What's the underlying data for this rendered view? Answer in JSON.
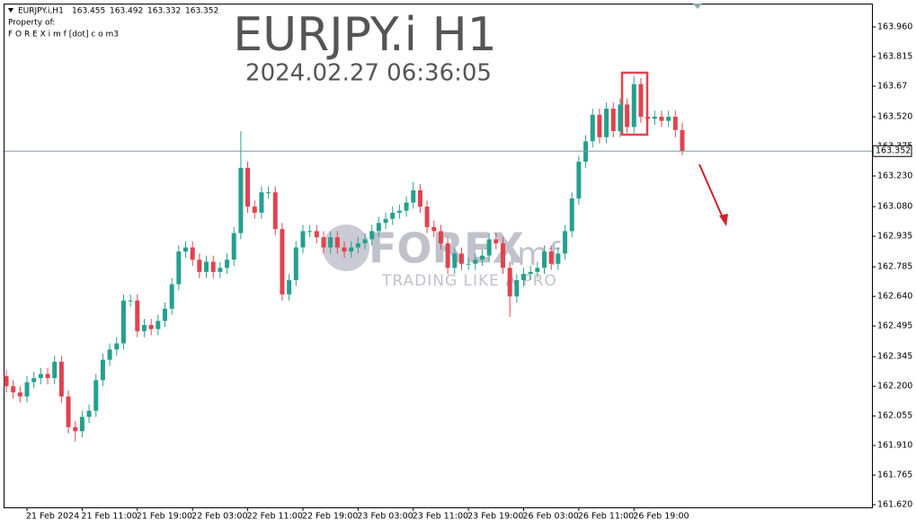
{
  "chart_data": {
    "type": "candlestick",
    "symbol": "EURJPY.i,H1",
    "header_values": [
      "163.455",
      "163.492",
      "163.332",
      "163.352"
    ],
    "property_line": "Property of:",
    "site_line": "F O R E X i m f [dot] c o m3",
    "watermark_title": "EURJPY.i H1",
    "watermark_time": "2024.02.27 06:36:05",
    "logo_text": "FOREX",
    "logo_suffix": "imf",
    "logo_tagline": "TRADING LIKE A PRO",
    "up_color": "#26a08e",
    "down_color": "#e0434f",
    "categories": [
      null,
      null,
      null,
      "21 Feb 2024",
      null,
      null,
      null,
      null,
      null,
      null,
      null,
      "21 Feb 11:00",
      null,
      null,
      null,
      null,
      null,
      null,
      null,
      "21 Feb 19:00",
      null,
      null,
      null,
      null,
      null,
      null,
      null,
      "22 Feb 03:00",
      null,
      null,
      null,
      null,
      null,
      null,
      null,
      "22 Feb 11:00",
      null,
      null,
      null,
      null,
      null,
      null,
      null,
      "22 Feb 19:00",
      null,
      null,
      null,
      null,
      null,
      null,
      null,
      "23 Feb 03:00",
      null,
      null,
      null,
      null,
      null,
      null,
      null,
      "23 Feb 11:00",
      null,
      null,
      null,
      null,
      null,
      null,
      null,
      "23 Feb 19:00",
      null,
      null,
      null,
      null,
      null,
      null,
      null,
      "26 Feb 03:00",
      null,
      null,
      null,
      null,
      null,
      null,
      null,
      "26 Feb 11:00",
      null,
      null,
      null,
      null,
      null,
      null,
      null,
      "26 Feb 19:00",
      null,
      null,
      null,
      null,
      null,
      null,
      null
    ],
    "open": [
      162.25,
      162.2,
      162.17,
      162.15,
      162.22,
      162.24,
      162.26,
      162.24,
      162.32,
      162.15,
      162.0,
      161.98,
      162.05,
      162.08,
      162.23,
      162.33,
      162.38,
      162.41,
      162.62,
      162.62,
      162.47,
      162.5,
      162.48,
      162.52,
      162.58,
      162.7,
      162.86,
      162.88,
      162.82,
      162.76,
      162.81,
      162.76,
      162.78,
      162.82,
      162.95,
      163.27,
      163.08,
      163.05,
      163.15,
      163.15,
      162.97,
      162.65,
      162.72,
      162.88,
      162.96,
      162.96,
      162.93,
      162.88,
      162.93,
      162.88,
      162.86,
      162.88,
      162.9,
      162.92,
      162.96,
      163.0,
      163.02,
      163.05,
      163.06,
      163.1,
      163.16,
      163.08,
      162.98,
      162.96,
      162.9,
      162.78,
      162.85,
      162.8,
      162.8,
      162.82,
      162.84,
      162.92,
      162.9,
      162.78,
      162.64,
      162.72,
      162.75,
      162.76,
      162.78,
      162.86,
      162.8,
      162.85,
      162.96,
      163.12,
      163.3,
      163.4,
      163.53,
      163.42,
      163.56,
      163.45,
      163.58,
      163.47,
      163.68,
      163.52,
      163.51,
      163.52,
      163.5,
      163.52,
      163.455
    ],
    "high": [
      162.28,
      162.23,
      162.2,
      162.25,
      162.27,
      162.29,
      162.29,
      162.35,
      162.35,
      162.18,
      162.03,
      162.08,
      162.11,
      162.26,
      162.36,
      162.41,
      162.44,
      162.65,
      162.65,
      162.65,
      162.53,
      162.53,
      162.55,
      162.61,
      162.73,
      162.89,
      162.91,
      162.91,
      162.85,
      162.84,
      162.84,
      162.81,
      162.85,
      162.98,
      163.45,
      163.3,
      163.11,
      163.18,
      163.18,
      163.18,
      163.0,
      162.75,
      162.91,
      162.99,
      162.99,
      162.99,
      162.96,
      162.96,
      162.96,
      162.91,
      162.91,
      162.93,
      162.95,
      162.99,
      163.03,
      163.05,
      163.08,
      163.09,
      163.13,
      163.2,
      163.19,
      163.11,
      163.01,
      162.99,
      162.93,
      162.88,
      162.88,
      162.83,
      162.85,
      162.87,
      162.95,
      162.95,
      162.93,
      162.81,
      162.75,
      162.78,
      162.79,
      162.81,
      162.89,
      162.89,
      162.88,
      162.99,
      163.15,
      163.33,
      163.43,
      163.56,
      163.56,
      163.59,
      163.59,
      163.61,
      163.61,
      163.72,
      163.71,
      163.55,
      163.55,
      163.55,
      163.55,
      163.55,
      163.492
    ],
    "low": [
      162.17,
      162.14,
      162.12,
      162.12,
      162.19,
      162.21,
      162.21,
      162.21,
      162.12,
      161.97,
      161.93,
      161.95,
      162.02,
      162.05,
      162.2,
      162.3,
      162.35,
      162.38,
      162.59,
      162.44,
      162.44,
      162.45,
      162.45,
      162.49,
      162.55,
      162.67,
      162.83,
      162.79,
      162.73,
      162.73,
      162.73,
      162.73,
      162.75,
      162.79,
      162.92,
      163.05,
      163.02,
      163.02,
      163.12,
      162.94,
      162.62,
      162.62,
      162.69,
      162.85,
      162.93,
      162.9,
      162.85,
      162.85,
      162.85,
      162.83,
      162.83,
      162.85,
      162.87,
      162.89,
      162.93,
      162.97,
      162.99,
      163.02,
      163.03,
      163.07,
      163.05,
      162.95,
      162.93,
      162.87,
      162.75,
      162.75,
      162.77,
      162.77,
      162.77,
      162.79,
      162.81,
      162.87,
      162.75,
      162.54,
      162.61,
      162.69,
      162.72,
      162.73,
      162.75,
      162.77,
      162.77,
      162.82,
      162.93,
      163.09,
      163.27,
      163.37,
      163.39,
      163.39,
      163.42,
      163.42,
      163.44,
      163.44,
      163.49,
      163.48,
      163.48,
      163.47,
      163.47,
      163.42,
      163.332
    ],
    "close": [
      162.2,
      162.17,
      162.15,
      162.22,
      162.24,
      162.26,
      162.24,
      162.32,
      162.15,
      162.0,
      161.98,
      162.05,
      162.08,
      162.23,
      162.33,
      162.38,
      162.41,
      162.62,
      162.62,
      162.47,
      162.5,
      162.48,
      162.52,
      162.58,
      162.7,
      162.86,
      162.88,
      162.82,
      162.76,
      162.81,
      162.76,
      162.78,
      162.82,
      162.95,
      163.27,
      163.08,
      163.05,
      163.15,
      163.15,
      162.97,
      162.65,
      162.72,
      162.88,
      162.96,
      162.96,
      162.93,
      162.88,
      162.93,
      162.88,
      162.86,
      162.88,
      162.9,
      162.92,
      162.96,
      163.0,
      163.02,
      163.05,
      163.06,
      163.1,
      163.16,
      163.08,
      162.98,
      162.96,
      162.9,
      162.78,
      162.85,
      162.8,
      162.8,
      162.82,
      162.84,
      162.92,
      162.9,
      162.78,
      162.64,
      162.72,
      162.75,
      162.76,
      162.78,
      162.86,
      162.8,
      162.85,
      162.96,
      163.12,
      163.3,
      163.4,
      163.53,
      163.42,
      163.56,
      163.45,
      163.58,
      163.47,
      163.68,
      163.52,
      163.51,
      163.52,
      163.5,
      163.52,
      163.455,
      163.352
    ],
    "ylim": [
      161.607,
      164.07
    ],
    "yticks": [
      {
        "value": 163.96,
        "label": "163.960"
      },
      163.815,
      163.67,
      {
        "value": 163.52,
        "label": "163.520"
      },
      163.375,
      {
        "value": 163.23,
        "label": "163.230"
      },
      {
        "value": 163.08,
        "label": "163.080"
      },
      162.935,
      162.785,
      {
        "value": 162.64,
        "label": "162.640"
      },
      162.495,
      162.345,
      {
        "value": 162.2,
        "label": "162.200"
      },
      162.055,
      {
        "value": 161.91,
        "label": "161.910"
      },
      161.765,
      {
        "value": 161.62,
        "label": "161.620"
      }
    ]
  }
}
